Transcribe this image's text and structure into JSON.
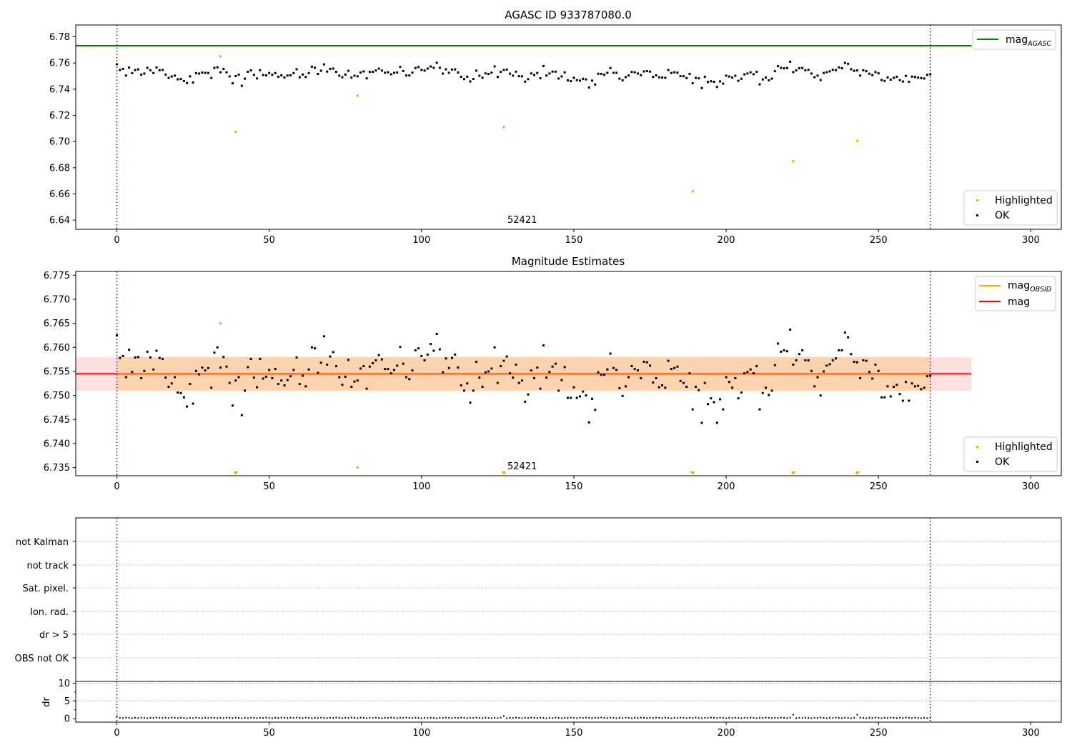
{
  "colors": {
    "ok": "#000000",
    "highlighted": "#ffa500",
    "agasc_line": "#008000",
    "mag_line": "#ff0000",
    "obsid_line": "#ffa500",
    "band_inner": "#ffa500",
    "band_outer": "#ff0000",
    "obs_boundary": "#800080"
  },
  "chart_data": [
    {
      "type": "scatter",
      "title": "AGASC ID 933787080.0",
      "xlim": [
        -13.5,
        310
      ],
      "ylim": [
        6.633,
        6.789
      ],
      "xticks": [
        0,
        50,
        100,
        150,
        200,
        250,
        300
      ],
      "yticks": [
        6.64,
        6.66,
        6.68,
        6.7,
        6.72,
        6.74,
        6.76,
        6.78
      ],
      "ytick_labels": [
        "6.64",
        "6.66",
        "6.68",
        "6.70",
        "6.72",
        "6.74",
        "6.76",
        "6.78"
      ],
      "annotation": "52421",
      "reference_line": {
        "name": "mag",
        "sub": "AGASC",
        "y": 6.7732,
        "x_range": [
          -13.5,
          280.5
        ]
      },
      "obs_boundaries": [
        0,
        267
      ],
      "legend_lines": [
        {
          "name": "mag",
          "sub": "AGASC",
          "color": "#008000"
        }
      ],
      "legend_points": [
        "Highlighted",
        "OK"
      ],
      "grid": false
    },
    {
      "type": "scatter",
      "title": "Magnitude Estimates",
      "xlim": [
        -13.5,
        310
      ],
      "ylim": [
        6.7333,
        6.7758
      ],
      "xticks": [
        0,
        50,
        100,
        150,
        200,
        250,
        300
      ],
      "yticks": [
        6.735,
        6.74,
        6.745,
        6.75,
        6.755,
        6.76,
        6.765,
        6.77,
        6.775
      ],
      "ytick_labels": [
        "6.735",
        "6.740",
        "6.745",
        "6.750",
        "6.755",
        "6.760",
        "6.765",
        "6.770",
        "6.775"
      ],
      "annotation": "52421",
      "mag_line": 6.7545,
      "band": [
        6.751,
        6.758
      ],
      "band_x_range": [
        -13.5,
        280.5
      ],
      "inner_x_range": [
        0,
        267
      ],
      "obs_boundaries": [
        0,
        267
      ],
      "legend_lines": [
        {
          "name": "mag",
          "sub": "OBSID",
          "color": "#ffa500"
        },
        {
          "name": "mag",
          "sub": "",
          "color": "#ff0000"
        }
      ],
      "legend_points": [
        "Highlighted",
        "OK"
      ],
      "grid": false
    },
    {
      "type": "scatter",
      "title": "",
      "ylabel": "",
      "flags": [
        "not Kalman",
        "not track",
        "Sat. pixel.",
        "Ion. rad.",
        "dr > 5",
        "OBS not OK"
      ],
      "xlim": [
        -13.5,
        310
      ],
      "obs_boundaries": [
        0,
        267
      ],
      "grid": true
    },
    {
      "type": "scatter",
      "ylabel": "dr",
      "xlim": [
        -13.5,
        310
      ],
      "ylim": [
        -1,
        10.5
      ],
      "xticks": [
        0,
        50,
        100,
        150,
        200,
        250,
        300
      ],
      "yticks": [
        0,
        5,
        10
      ],
      "ytick_labels": [
        "0",
        "5",
        "10"
      ],
      "obs_boundaries": [
        0,
        267
      ],
      "grid": true
    }
  ],
  "series": {
    "n": 268,
    "ok_mag": [
      6.7625,
      6.7578,
      6.7582,
      6.7538,
      6.7595,
      6.7549,
      6.7579,
      6.758,
      6.7536,
      6.7551,
      6.7591,
      6.7579,
      6.7554,
      6.7593,
      6.7578,
      6.7576,
      6.7537,
      6.7518,
      6.7525,
      6.7538,
      6.7506,
      6.7505,
      6.7496,
      6.7477,
      6.7524,
      6.7483,
      6.7551,
      6.7544,
      6.7558,
      6.7552,
      6.7557,
      6.7516,
      6.7589,
      6.76,
      6.7558,
      6.758,
      6.756,
      6.7526,
      6.7479,
      6.7531,
      6.7538,
      6.7459,
      6.751,
      6.7559,
      6.7576,
      6.7537,
      6.7517,
      6.7576,
      6.7535,
      6.7539,
      6.7553,
      6.7536,
      6.7555,
      6.7524,
      6.7531,
      6.7521,
      6.7532,
      6.754,
      6.7553,
      6.7579,
      6.7524,
      6.7541,
      6.7519,
      6.7554,
      6.76,
      6.7598,
      6.7547,
      6.7568,
      6.7623,
      6.7564,
      6.7581,
      6.759,
      6.7561,
      6.7538,
      6.7522,
      6.7539,
      6.7574,
      6.7518,
      6.7529,
      6.7531,
      6.7556,
      6.7561,
      6.7514,
      6.756,
      6.7567,
      6.7573,
      6.7584,
      6.7575,
      6.7555,
      6.7555,
      6.7546,
      6.7553,
      6.7562,
      6.7601,
      6.7566,
      6.7538,
      6.7534,
      6.7552,
      6.7594,
      6.7598,
      6.7582,
      6.7573,
      6.7585,
      6.7607,
      6.7593,
      6.7628,
      6.7596,
      6.7548,
      6.7577,
      6.7557,
      6.7578,
      6.7585,
      6.7558,
      6.7521,
      6.751,
      6.7525,
      6.7485,
      6.751,
      6.757,
      6.7537,
      6.7518,
      6.7548,
      6.755,
      6.7556,
      6.76,
      6.7526,
      6.7561,
      6.7572,
      6.7581,
      6.7546,
      6.7537,
      6.7564,
      6.7526,
      6.7531,
      6.7487,
      6.7502,
      6.7552,
      6.7536,
      6.7558,
      6.7514,
      6.7604,
      6.7537,
      6.7549,
      6.756,
      6.7566,
      6.751,
      6.7532,
      6.7559,
      6.7495,
      6.7495,
      6.7517,
      6.7495,
      6.7498,
      6.7508,
      6.75,
      6.7444,
      6.7493,
      6.747,
      6.7548,
      6.7543,
      6.7543,
      6.7554,
      6.7587,
      6.7557,
      6.7553,
      6.7515,
      6.7499,
      6.7519,
      6.7538,
      6.7561,
      6.7555,
      6.7552,
      6.7536,
      6.757,
      6.7569,
      6.7562,
      6.7527,
      6.7536,
      6.7517,
      6.7521,
      6.7516,
      6.7572,
      6.7555,
      6.7557,
      6.756,
      6.753,
      6.7526,
      6.7518,
      6.7546,
      6.7471,
      6.7518,
      6.7511,
      6.7443,
      6.7526,
      6.7482,
      6.7494,
      6.7486,
      6.7443,
      6.7492,
      6.7471,
      6.7538,
      6.7528,
      6.7516,
      6.7536,
      6.7494,
      6.7506,
      6.7546,
      6.7549,
      6.7554,
      6.7546,
      6.7561,
      6.7471,
      6.7505,
      6.7516,
      6.7501,
      6.751,
      6.7563,
      6.7608,
      6.7591,
      6.7594,
      6.7592,
      6.7637,
      6.7564,
      6.7573,
      6.7586,
      6.7594,
      6.7573,
      6.7573,
      6.7551,
      6.7519,
      6.7538,
      6.75,
      6.755,
      6.7562,
      6.7565,
      6.7573,
      6.7577,
      6.7594,
      6.7594,
      6.7631,
      6.7621,
      6.7586,
      6.757,
      6.7569,
      6.7536,
      6.7573,
      6.7572,
      6.7549,
      6.7535,
      6.7564,
      6.7551,
      6.7496,
      6.7496,
      6.7519,
      6.7498,
      6.7518,
      6.7522,
      6.7503,
      6.7489,
      6.7528,
      6.7489,
      6.7525,
      6.7519,
      6.752,
      6.7513,
      6.7516,
      6.754,
      6.7541
    ],
    "highlighted_top": [
      {
        "x": 34,
        "y": 6.765
      },
      {
        "x": 39,
        "y": 6.7075
      },
      {
        "x": 79,
        "y": 6.735
      },
      {
        "x": 127,
        "y": 6.711
      },
      {
        "x": 189,
        "y": 6.662
      },
      {
        "x": 222,
        "y": 6.685
      },
      {
        "x": 243,
        "y": 6.7005
      }
    ],
    "highlighted_mid_points": [
      {
        "x": 34,
        "y": 6.765
      },
      {
        "x": 79,
        "y": 6.735
      }
    ],
    "highlighted_mid_offscale": [
      39,
      127,
      189,
      222,
      243
    ],
    "dr_spikes": [
      {
        "x": 0,
        "y": 0.6
      },
      {
        "x": 127,
        "y": 0.7
      },
      {
        "x": 222,
        "y": 1.1
      },
      {
        "x": 243,
        "y": 1.1
      }
    ]
  }
}
